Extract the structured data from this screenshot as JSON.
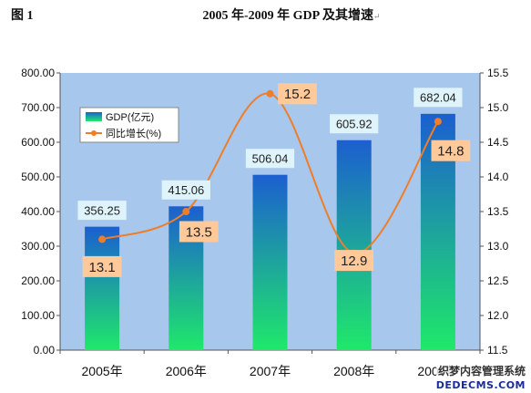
{
  "figure_label": "图 1",
  "title": "2005 年-2009 年 GDP 及其增速",
  "title_mark": "↵",
  "watermark": {
    "line1": "织梦内容管理系统",
    "line2": "DEDECMS.COM"
  },
  "colors": {
    "plot_bg": "#a7c7ed",
    "bar_top": "#1c5fd0",
    "bar_bottom": "#1fe86a",
    "line": "#f07d27",
    "label_bg_bar": "#dff3fa",
    "label_bg_line": "#ffc99a"
  },
  "chart_data": {
    "type": "bar",
    "categories": [
      "2005年",
      "2006年",
      "2007年",
      "2008年",
      "2009年"
    ],
    "series": [
      {
        "name": "GDP(亿元)",
        "type": "bar",
        "axis": "left",
        "values": [
          356.25,
          415.06,
          506.04,
          605.92,
          682.04
        ],
        "labels": [
          "356.25",
          "415.06",
          "506.04",
          "605.92",
          "682.04"
        ]
      },
      {
        "name": "同比增长(%)",
        "type": "line",
        "axis": "right",
        "values": [
          13.1,
          13.5,
          15.2,
          12.9,
          14.8
        ],
        "labels": [
          "13.1",
          "13.5",
          "15.2",
          "12.9",
          "14.8"
        ]
      }
    ],
    "y_left": {
      "ylim": [
        0,
        800
      ],
      "ticks": [
        "0.00",
        "100.00",
        "200.00",
        "300.00",
        "400.00",
        "500.00",
        "600.00",
        "700.00",
        "800.00"
      ]
    },
    "y_right": {
      "ylim": [
        11.5,
        15.5
      ],
      "ticks": [
        "11.5",
        "12.0",
        "12.5",
        "13.0",
        "13.5",
        "14.0",
        "14.5",
        "15.0",
        "15.5"
      ]
    },
    "legend_position": "top-left",
    "grid": false
  }
}
